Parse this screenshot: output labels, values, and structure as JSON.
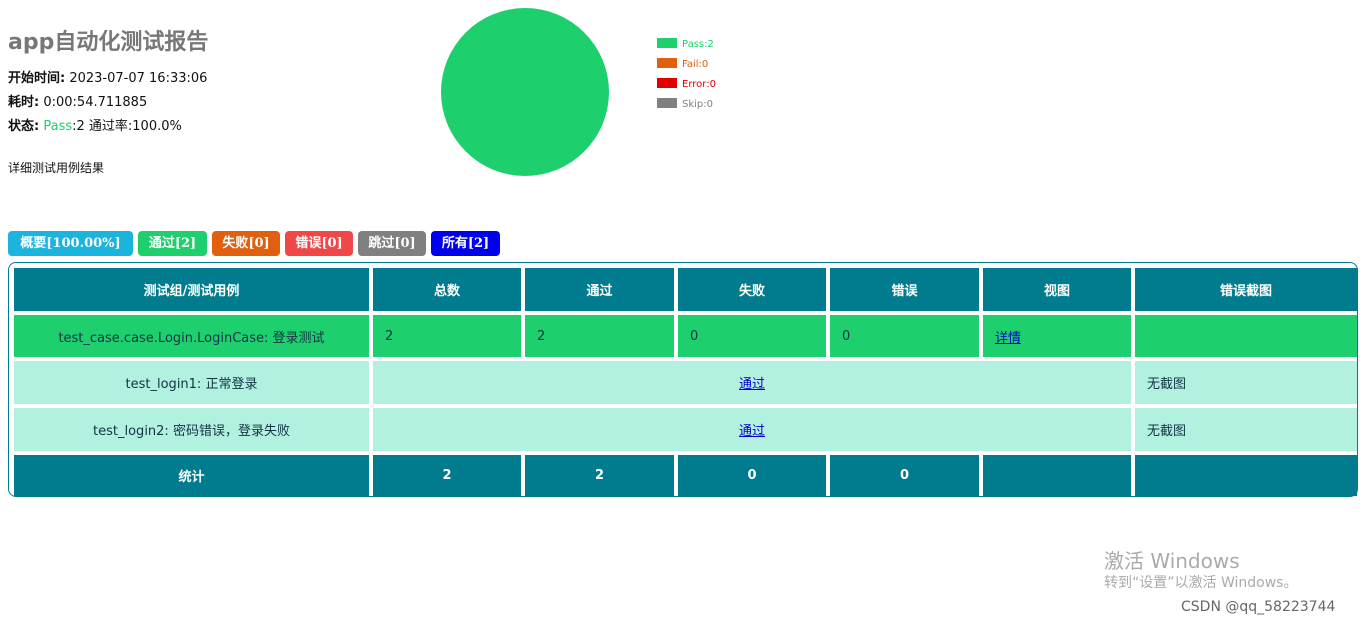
{
  "header": {
    "title": "app自动化测试报告",
    "start_label": "开始时间:",
    "start_value": "2023-07-07 16:33:06",
    "duration_label": "耗时:",
    "duration_value": "0:00:54.711885",
    "status_label": "状态:",
    "status_pass": "Pass",
    "status_rest": ":2 通过率:100.0%",
    "detail_heading": "详细测试用例结果"
  },
  "pie": {
    "legend": [
      {
        "label": "Pass:2",
        "value": 2,
        "color": "#1ecf6e"
      },
      {
        "label": "Fail:0",
        "value": 0,
        "color": "#e06010"
      },
      {
        "label": "Error:0",
        "value": 0,
        "color": "#e00000"
      },
      {
        "label": "Skip:0",
        "value": 0,
        "color": "#808080"
      }
    ]
  },
  "filters": [
    {
      "label": "概要[100.00%]",
      "color": "#1ab4dc"
    },
    {
      "label": "通过[2]",
      "color": "#1ecf6e"
    },
    {
      "label": "失败[0]",
      "color": "#e06010"
    },
    {
      "label": "错误[0]",
      "color": "#f04848"
    },
    {
      "label": "跳过[0]",
      "color": "#808080"
    },
    {
      "label": "所有[2]",
      "color": "#0000ee"
    }
  ],
  "table": {
    "headers": [
      "测试组/测试用例",
      "总数",
      "通过",
      "失败",
      "错误",
      "视图",
      "错误截图"
    ],
    "suite_row": {
      "name": "test_case.case.Login.LoginCase: 登录测试",
      "total": 2,
      "pass": 2,
      "fail": 0,
      "error": 0,
      "view": "详情"
    },
    "cases": [
      {
        "name": "test_login1: 正常登录",
        "result": "通过",
        "screenshot": "无截图"
      },
      {
        "name": "test_login2: 密码错误，登录失败",
        "result": "通过",
        "screenshot": "无截图"
      }
    ],
    "totals": {
      "label": "统计",
      "total": 2,
      "pass": 2,
      "fail": 0,
      "error": 0
    }
  },
  "watermark": {
    "activate": "激活 Windows",
    "goto": "转到“设置”以激活 Windows。",
    "source": "CSDN @qq_58223744"
  }
}
